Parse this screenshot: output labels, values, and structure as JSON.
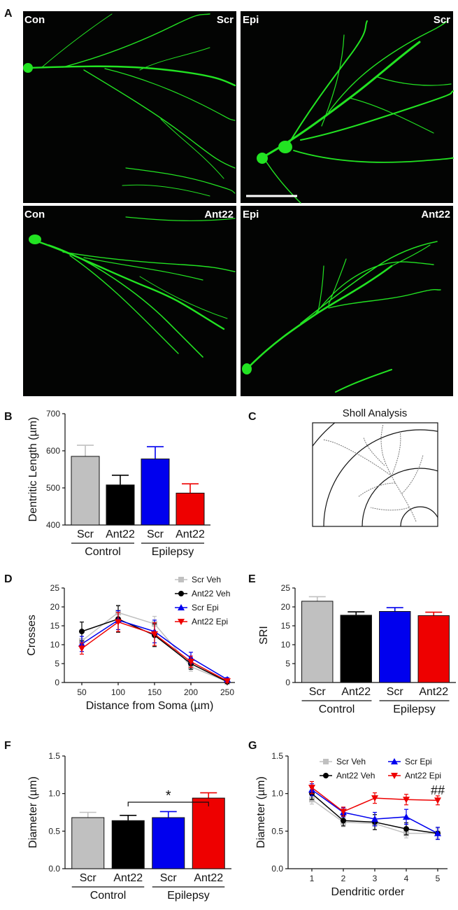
{
  "figure": {
    "panel_labels": [
      "A",
      "B",
      "C",
      "D",
      "E",
      "F",
      "G"
    ],
    "panel_a": {
      "images": [
        {
          "left": "Con",
          "right": "Scr"
        },
        {
          "left": "Epi",
          "right": "Scr"
        },
        {
          "left": "Con",
          "right": "Ant22"
        },
        {
          "left": "Epi",
          "right": "Ant22"
        }
      ]
    },
    "panel_c": {
      "title": "Sholl Analysis"
    },
    "groups": {
      "control": "Control",
      "epilepsy": "Epilepsy"
    },
    "colors": {
      "scr_veh": "#c0c0c0",
      "ant22_veh": "#000000",
      "scr_epi": "#0000ee",
      "ant22_epi": "#ee0000",
      "neuron": "#22ee22"
    }
  },
  "chart_data": [
    {
      "panel": "B",
      "type": "bar",
      "categories": [
        "Scr",
        "Ant22",
        "Scr",
        "Ant22"
      ],
      "values": [
        585,
        508,
        578,
        486
      ],
      "errors": [
        30,
        26,
        33,
        25
      ],
      "ylabel": "Dentritic Length (µm)",
      "ylim": [
        400,
        700
      ],
      "yticks": [
        "400",
        "500",
        "600",
        "700"
      ],
      "groups": [
        "Control",
        "Epilepsy"
      ]
    },
    {
      "panel": "D",
      "type": "line",
      "x": [
        50,
        100,
        150,
        200,
        250
      ],
      "xticks": [
        "50",
        "100",
        "150",
        "200",
        "250"
      ],
      "yticks": [
        "0",
        "5",
        "10",
        "15",
        "20",
        "25"
      ],
      "xlabel": "Distance from Soma (µm)",
      "ylabel": "Crosses",
      "ylim": [
        0,
        25
      ],
      "legend": "top-right",
      "series": [
        {
          "name": "Scr Veh",
          "values": [
            11,
            18.5,
            15.5,
            4.2,
            0.2
          ],
          "errors": [
            2,
            2,
            2,
            1.2,
            0.3
          ]
        },
        {
          "name": "Ant22 Veh",
          "values": [
            13.5,
            16.8,
            12.5,
            5,
            0.2
          ],
          "errors": [
            2.5,
            3.5,
            3,
            1.5,
            0.3
          ]
        },
        {
          "name": "Scr Epi",
          "values": [
            10.2,
            16.5,
            13.5,
            6.5,
            0.8
          ],
          "errors": [
            2,
            2.5,
            3,
            1.5,
            0.5
          ]
        },
        {
          "name": "Ant22 Epi",
          "values": [
            9,
            16,
            12.8,
            5.5,
            0.4
          ],
          "errors": [
            1.5,
            2.5,
            3,
            1.5,
            0.4
          ]
        }
      ]
    },
    {
      "panel": "E",
      "type": "bar",
      "categories": [
        "Scr",
        "Ant22",
        "Scr",
        "Ant22"
      ],
      "values": [
        21.5,
        17.8,
        18.8,
        17.7
      ],
      "errors": [
        1.2,
        0.9,
        1.0,
        0.9
      ],
      "ylabel": "SRI",
      "ylim": [
        0,
        25
      ],
      "yticks": [
        "0",
        "5",
        "10",
        "15",
        "20",
        "25"
      ],
      "groups": [
        "Control",
        "Epilepsy"
      ]
    },
    {
      "panel": "F",
      "type": "bar",
      "categories": [
        "Scr",
        "Ant22",
        "Scr",
        "Ant22"
      ],
      "values": [
        0.68,
        0.64,
        0.68,
        0.94
      ],
      "errors": [
        0.07,
        0.07,
        0.08,
        0.07
      ],
      "ylabel": "Diameter (µm)",
      "ylim": [
        0,
        1.5
      ],
      "yticks": [
        "0.0",
        "0.5",
        "1.0",
        "1.5"
      ],
      "groups": [
        "Control",
        "Epilepsy"
      ],
      "annotation": "*"
    },
    {
      "panel": "G",
      "type": "line",
      "x": [
        1,
        2,
        3,
        4,
        5
      ],
      "xticks": [
        "1",
        "2",
        "3",
        "4",
        "5"
      ],
      "yticks": [
        "0.0",
        "0.5",
        "1.0",
        "1.5"
      ],
      "xlabel": "Dendritic order",
      "ylabel": "Diameter (µm)",
      "ylim": [
        0,
        1.5
      ],
      "legend": "top",
      "annotation": "##",
      "series": [
        {
          "name": "Scr Veh",
          "values": [
            0.92,
            0.62,
            0.6,
            0.47,
            0.47
          ],
          "errors": [
            0.06,
            0.06,
            0.08,
            0.06,
            0.06
          ]
        },
        {
          "name": "Ant22 Veh",
          "values": [
            1.0,
            0.64,
            0.62,
            0.53,
            0.47
          ],
          "errors": [
            0.08,
            0.07,
            0.1,
            0.08,
            0.08
          ]
        },
        {
          "name": "Scr Epi",
          "values": [
            1.05,
            0.75,
            0.66,
            0.69,
            0.47
          ],
          "errors": [
            0.08,
            0.06,
            0.09,
            0.1,
            0.08
          ]
        },
        {
          "name": "Ant22 Epi",
          "values": [
            1.08,
            0.76,
            0.94,
            0.92,
            0.91
          ],
          "errors": [
            0.08,
            0.06,
            0.07,
            0.07,
            0.06
          ]
        }
      ]
    }
  ]
}
